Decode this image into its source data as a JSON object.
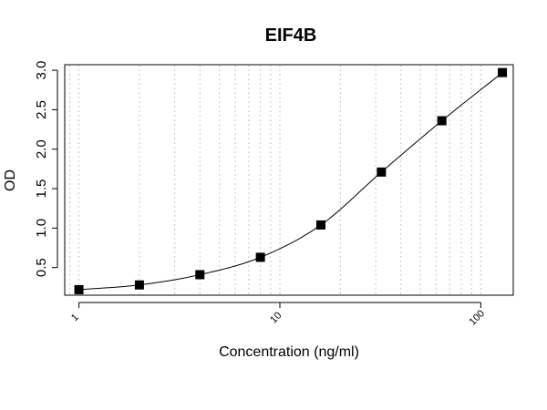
{
  "chart_data": {
    "type": "scatter",
    "title": "EIF4B",
    "xlabel": "Concentration (ng/ml)",
    "ylabel": "OD",
    "x_scale": "log",
    "xlim": [
      0.85,
      145
    ],
    "ylim": [
      0.15,
      3.07
    ],
    "x_ticks": [
      1,
      10,
      100
    ],
    "x_tick_labels": [
      "1",
      "10",
      "100"
    ],
    "y_ticks": [
      0.5,
      1.0,
      1.5,
      2.0,
      2.5,
      3.0
    ],
    "y_tick_labels": [
      "0.5",
      "1.0",
      "1.5",
      "2.0",
      "2.5",
      "3.0"
    ],
    "grid": "vertical dotted at log minor ticks",
    "series": [
      {
        "marker": "square",
        "color": "#000000",
        "points": [
          {
            "x": 1,
            "y": 0.22
          },
          {
            "x": 2,
            "y": 0.28
          },
          {
            "x": 4,
            "y": 0.41
          },
          {
            "x": 8,
            "y": 0.63
          },
          {
            "x": 16,
            "y": 1.04
          },
          {
            "x": 32,
            "y": 1.71
          },
          {
            "x": 64,
            "y": 2.36
          },
          {
            "x": 128,
            "y": 2.97
          }
        ]
      }
    ],
    "fit_curve": "sigmoidal fit through points"
  }
}
